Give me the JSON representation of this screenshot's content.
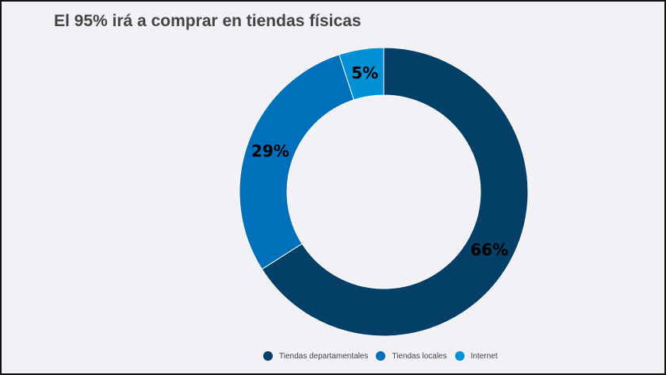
{
  "title": "El 95% irá a comprar en tiendas físicas",
  "chart_data": {
    "type": "pie",
    "donut": true,
    "title": "El 95% irá a comprar en tiendas físicas",
    "categories": [
      "Tiendas departamentales",
      "Tiendas locales",
      "Internet"
    ],
    "values": [
      66,
      29,
      5
    ],
    "labels": [
      "66%",
      "29%",
      "5%"
    ],
    "colors": [
      "#033f66",
      "#0070bb",
      "#0391d6"
    ],
    "legend_position": "bottom"
  }
}
